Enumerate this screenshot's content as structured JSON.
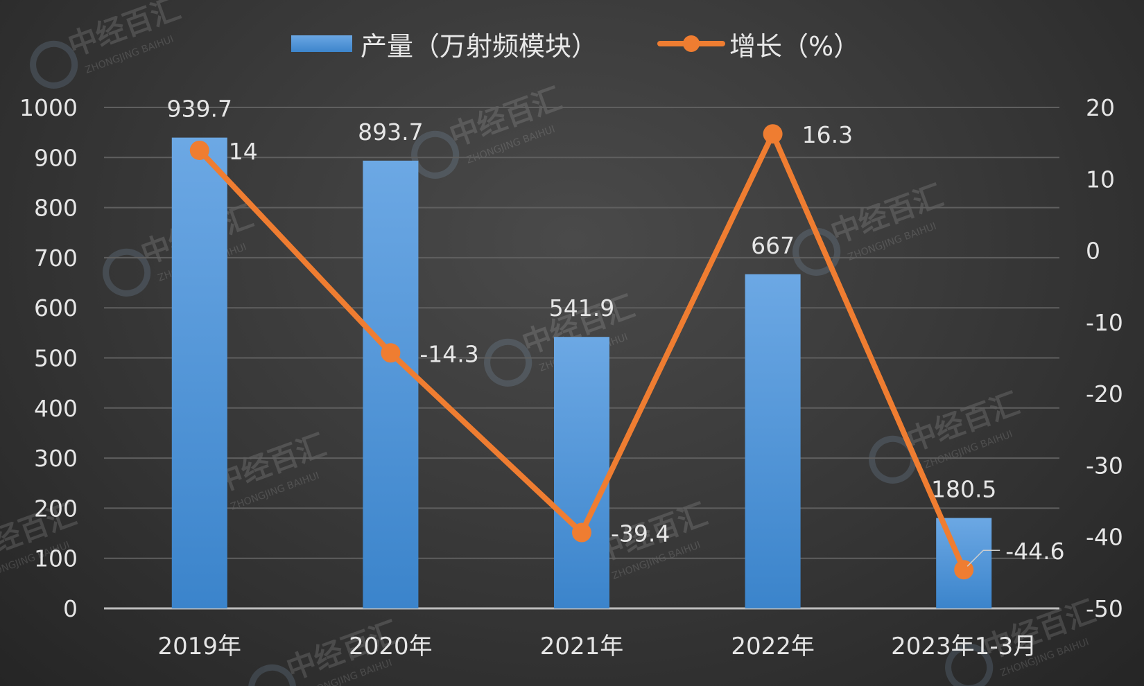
{
  "chart_data": {
    "type": "bar+line",
    "categories": [
      "2019年",
      "2020年",
      "2021年",
      "2022年",
      "2023年1-3月"
    ],
    "series": [
      {
        "name": "产量（万射频模块）",
        "type": "bar",
        "axis": "left",
        "values": [
          939.7,
          893.7,
          541.9,
          667,
          180.5
        ],
        "labels": [
          "939.7",
          "893.7",
          "541.9",
          "667",
          "180.5"
        ],
        "color": "#4a90d9"
      },
      {
        "name": "增长（%）",
        "type": "line",
        "axis": "right",
        "values": [
          14,
          -14.3,
          -39.4,
          16.3,
          -44.6
        ],
        "labels": [
          "14",
          "-14.3",
          "-39.4",
          "16.3",
          "-44.6"
        ],
        "color": "#ef7d31"
      }
    ],
    "left_axis": {
      "min": 0,
      "max": 1000,
      "ticks": [
        "0",
        "100",
        "200",
        "300",
        "400",
        "500",
        "600",
        "700",
        "800",
        "900",
        "1000"
      ]
    },
    "right_axis": {
      "min": -50,
      "max": 20,
      "ticks": [
        "-50",
        "-40",
        "-30",
        "-20",
        "-10",
        "0",
        "10",
        "20"
      ]
    },
    "grid": true,
    "legend_position": "top-center",
    "watermark": {
      "cn": "中经百汇",
      "en": "ZHONGJING BAIHUI"
    }
  }
}
